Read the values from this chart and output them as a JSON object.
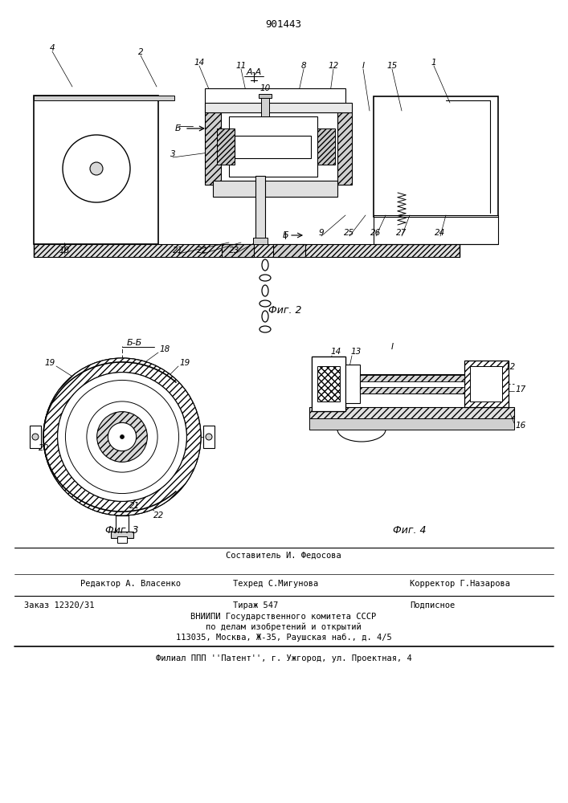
{
  "patent_number": "901443",
  "fig_color": "#ffffff",
  "footer_editor": "Редактор А. Власенко",
  "footer_composer": "Составитель И. Федосова",
  "footer_techred": "Техред С.Мигунова",
  "footer_corrector": "Корректор Г.Назарова",
  "footer_order": "Заказ 12320/31",
  "footer_tirazh": "Тираж 547",
  "footer_podp": "Подписное",
  "footer_org1": "ВНИИПИ Государственного комитета СССР",
  "footer_org2": "по делам изобретений и открытий",
  "footer_org3": "113035, Москва, Ж-35, Раушская наб., д. 4/5",
  "footer_filial": "Филиал ППП ''Патент'', г. Ужгород, ул. Проектная, 4",
  "fig2_label": "Фиг. 2",
  "fig3_label": "Фиг. 3",
  "fig4_label": "Фиг. 4"
}
